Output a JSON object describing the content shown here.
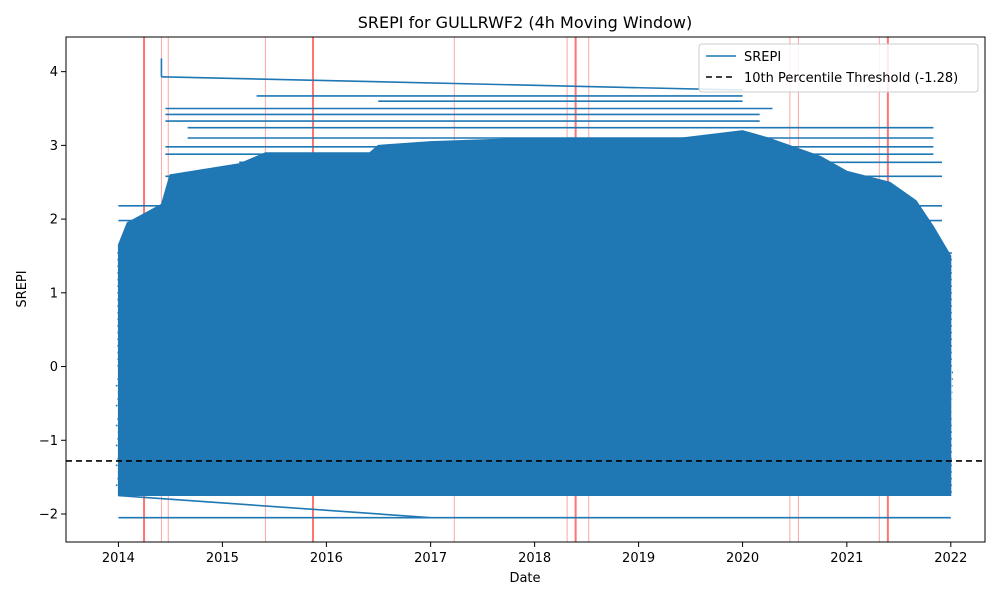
{
  "chart_data": {
    "type": "line",
    "title": "SREPI for GULLRWF2 (4h Moving Window)",
    "xlabel": "Date",
    "ylabel": "SREPI",
    "x_range": [
      "2013-07-01",
      "2022-05-01"
    ],
    "ylim": [
      -2.38,
      4.47
    ],
    "x_ticks": [
      "2014",
      "2015",
      "2016",
      "2017",
      "2018",
      "2019",
      "2020",
      "2021",
      "2022"
    ],
    "y_ticks": [
      -2,
      -1,
      0,
      1,
      2,
      3,
      4
    ],
    "y_tick_labels": [
      "−2",
      "−1",
      "0",
      "1",
      "2",
      "3",
      "4"
    ],
    "grid": false,
    "legend_position": "top-right",
    "series": [
      {
        "name": "SREPI",
        "color": "#1f77b4",
        "dense_band": {
          "x_start": "2014-01-01",
          "x_end": "2022-01-01",
          "y_low": -1.75,
          "envelope_top": [
            [
              "2014-01-01",
              1.65
            ],
            [
              "2014-02-01",
              1.95
            ],
            [
              "2014-06-01",
              2.2
            ],
            [
              "2014-07-01",
              2.6
            ],
            [
              "2015-03-01",
              2.75
            ],
            [
              "2015-06-01",
              2.9
            ],
            [
              "2016-06-01",
              2.9
            ],
            [
              "2016-07-01",
              3.0
            ],
            [
              "2017-01-01",
              3.05
            ],
            [
              "2018-01-01",
              3.1
            ],
            [
              "2019-06-01",
              3.1
            ],
            [
              "2020-01-01",
              3.2
            ],
            [
              "2020-04-01",
              3.1
            ],
            [
              "2020-10-01",
              2.85
            ],
            [
              "2021-01-01",
              2.65
            ],
            [
              "2021-06-01",
              2.5
            ],
            [
              "2021-09-01",
              2.25
            ],
            [
              "2021-11-01",
              1.9
            ],
            [
              "2022-01-01",
              1.5
            ]
          ]
        },
        "outliers": [
          {
            "y": 4.18,
            "x_start": "2014-06-01",
            "x_end": "2014-06-01"
          },
          {
            "y": 3.93,
            "x_start": "2014-06-01",
            "x_end": "2020-01-01",
            "slope_to": 3.75
          },
          {
            "y": 3.5,
            "x_start": "2014-06-15",
            "x_end": "2020-04-15"
          },
          {
            "y": 3.67,
            "x_start": "2015-05-01",
            "x_end": "2020-01-01"
          },
          {
            "y": 3.6,
            "x_start": "2016-07-01",
            "x_end": "2020-01-01"
          },
          {
            "y": 3.42,
            "x_start": "2014-06-15",
            "x_end": "2020-03-01"
          },
          {
            "y": 3.33,
            "x_start": "2014-06-15",
            "x_end": "2020-03-01"
          },
          {
            "y": 3.24,
            "x_start": "2014-09-01",
            "x_end": "2021-11-01"
          },
          {
            "y": 3.1,
            "x_start": "2014-09-01",
            "x_end": "2021-11-01"
          },
          {
            "y": 2.98,
            "x_start": "2014-06-15",
            "x_end": "2021-11-01"
          },
          {
            "y": 2.88,
            "x_start": "2014-06-15",
            "x_end": "2021-11-01"
          },
          {
            "y": 2.77,
            "x_start": "2015-03-01",
            "x_end": "2021-12-01"
          },
          {
            "y": 2.58,
            "x_start": "2014-06-15",
            "x_end": "2021-12-01"
          },
          {
            "y": 2.18,
            "x_start": "2014-01-01",
            "x_end": "2021-12-01"
          },
          {
            "y": 1.98,
            "x_start": "2014-01-01",
            "x_end": "2021-12-01"
          },
          {
            "y": -1.75,
            "x_start": "2014-01-01",
            "x_end": "2017-01-01",
            "slope_to": -2.05
          },
          {
            "y": -2.05,
            "x_start": "2014-01-01",
            "x_end": "2022-01-01"
          }
        ]
      }
    ],
    "threshold": {
      "label": "10th Percentile Threshold (-1.28)",
      "value": -1.28,
      "color": "#000000",
      "style": "dashed"
    },
    "event_lines": {
      "color": "#ff0000",
      "strong_dates": [
        "2014-04-01",
        "2015-11-15",
        "2018-05-25",
        "2021-05-25"
      ],
      "faint_dates": [
        "2014-06-01",
        "2014-06-25",
        "2015-06-01",
        "2017-03-25",
        "2018-04-25",
        "2018-07-10",
        "2020-06-15",
        "2020-07-15",
        "2021-04-25"
      ]
    }
  }
}
